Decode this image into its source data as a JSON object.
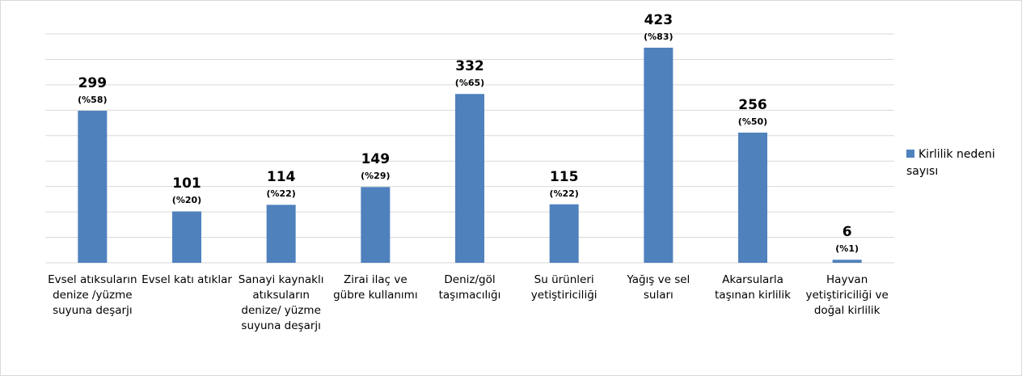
{
  "chart_data": {
    "type": "bar",
    "categories": [
      "Evsel atıksuların denize /yüzme suyuna deşarjı",
      "Evsel katı atıklar",
      "Sanayi kaynaklı atıksuların denize/ yüzme suyuna deşarjı",
      "Zirai ilaç ve gübre kullanımı",
      "Deniz/göl taşımacılığı",
      "Su ürünleri yetiştiriciliği",
      "Yağış ve sel suları",
      "Akarsularla taşınan kirlilik",
      "Hayvan yetiştiriciliği ve doğal kirlilik"
    ],
    "series": [
      {
        "name": "Kirlilik nedeni sayısı",
        "color": "#4f81bd",
        "values": [
          299,
          101,
          114,
          149,
          332,
          115,
          423,
          256,
          6
        ],
        "percentages": [
          58,
          20,
          22,
          29,
          65,
          22,
          83,
          50,
          1
        ],
        "percent_labels": [
          "(%58)",
          "(%20)",
          "(%22)",
          "(%29)",
          "(%65)",
          "(%22)",
          "(%83)",
          "(%50)",
          "(%1)"
        ]
      }
    ],
    "ylim": [
      0,
      450
    ],
    "yticks": [
      0,
      50,
      100,
      150,
      200,
      250,
      300,
      350,
      400,
      450
    ],
    "grid": true,
    "legend": "right"
  }
}
